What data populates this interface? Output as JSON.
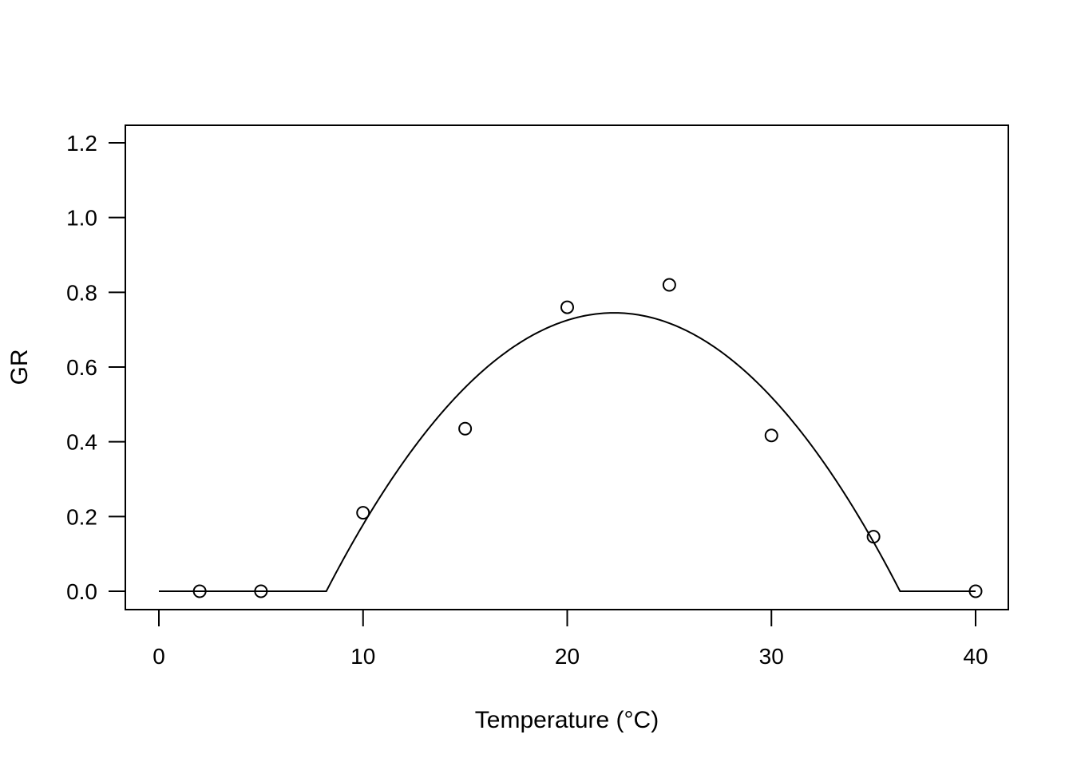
{
  "chart_data": {
    "type": "scatter",
    "title": "",
    "xlabel": "Temperature (°C)",
    "ylabel": "GR",
    "xlim": [
      0,
      40
    ],
    "ylim": [
      0,
      1.2
    ],
    "x_ticks": [
      "0",
      "10",
      "20",
      "30",
      "40"
    ],
    "y_ticks": [
      "0.0",
      "0.2",
      "0.4",
      "0.6",
      "0.8",
      "1.0",
      "1.2"
    ],
    "grid": false,
    "legend": "none",
    "series": [
      {
        "type": "scatter",
        "marker": "open-circle",
        "points": [
          {
            "x": 2,
            "y": 0.0
          },
          {
            "x": 5,
            "y": 0.0
          },
          {
            "x": 10,
            "y": 0.21
          },
          {
            "x": 15,
            "y": 0.435
          },
          {
            "x": 20,
            "y": 0.76
          },
          {
            "x": 25,
            "y": 0.82
          },
          {
            "x": 30,
            "y": 0.417
          },
          {
            "x": 35,
            "y": 0.146
          },
          {
            "x": 40,
            "y": 0.0
          }
        ]
      },
      {
        "type": "line",
        "fitted_curve": {
          "tmin": 8.2,
          "topt": 22.3,
          "tmax": 36.3,
          "ymax": 0.745
        }
      }
    ]
  }
}
